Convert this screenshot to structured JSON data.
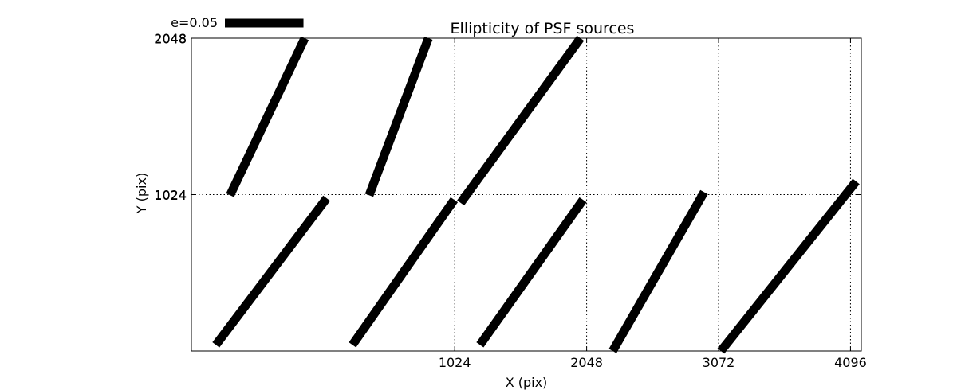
{
  "chart_data": {
    "type": "scatter",
    "title": "Ellipticity of PSF sources",
    "xlabel": "X (pix)",
    "ylabel": "Y (pix)",
    "xlim": [
      -1020,
      4180
    ],
    "ylim": [
      0,
      2048
    ],
    "xticks": [
      1024,
      2048,
      3072,
      4096
    ],
    "yticks": [
      1024,
      2048
    ],
    "y_tick_overlap": [
      1024,
      2048
    ],
    "grid": true,
    "legend": {
      "label": "e=0.05",
      "position": "top-left",
      "length_x": 610
    },
    "segments": [
      {
        "x1": -830,
        "y1": 40,
        "x2": 30,
        "y2": 1000
      },
      {
        "x1": 230,
        "y1": 40,
        "x2": 1020,
        "y2": 990
      },
      {
        "x1": 1220,
        "y1": 40,
        "x2": 2020,
        "y2": 990
      },
      {
        "x1": 2250,
        "y1": 0,
        "x2": 2960,
        "y2": 1040
      },
      {
        "x1": -720,
        "y1": 1020,
        "x2": -140,
        "y2": 2048
      },
      {
        "x1": 360,
        "y1": 1020,
        "x2": 820,
        "y2": 2048
      },
      {
        "x1": 1070,
        "y1": 970,
        "x2": 2000,
        "y2": 2048
      },
      {
        "x1": 3090,
        "y1": 0,
        "x2": 4140,
        "y2": 1110
      }
    ]
  }
}
